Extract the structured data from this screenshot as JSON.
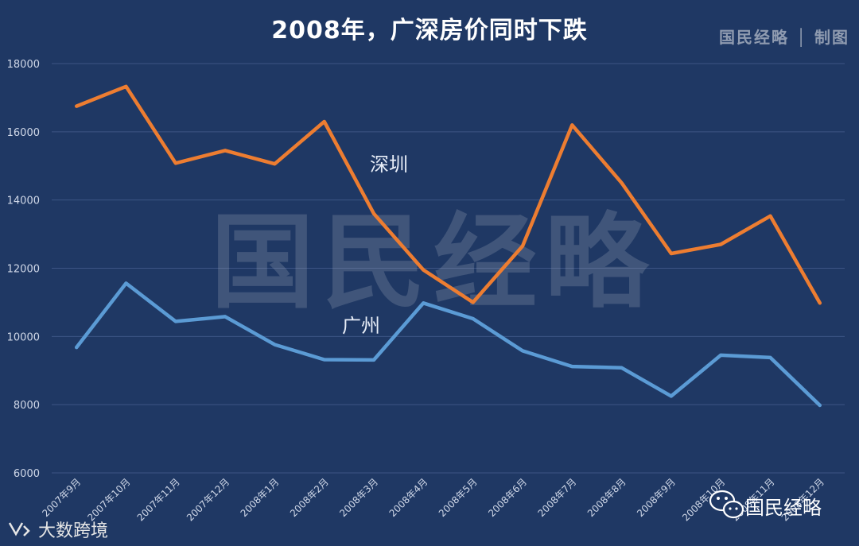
{
  "chart_data": {
    "type": "line",
    "title": "2008年，广深房价同时下跌",
    "categories": [
      "2007年9月",
      "2007年10月",
      "2007年11月",
      "2007年12月",
      "2008年1月",
      "2008年2月",
      "2008年3月",
      "2008年4月",
      "2008年5月",
      "2008年6月",
      "2008年7月",
      "2008年8月",
      "2008年9月",
      "2008年10月",
      "2008年11月",
      "2008年12月"
    ],
    "series": [
      {
        "name": "深圳",
        "color": "#ed7d31",
        "values": [
          16750,
          17330,
          15080,
          15450,
          15060,
          16300,
          13600,
          11950,
          11000,
          12650,
          16200,
          14500,
          12430,
          12700,
          13530,
          10980
        ]
      },
      {
        "name": "广州",
        "color": "#5b9bd5",
        "values": [
          9680,
          11560,
          10440,
          10580,
          9760,
          9320,
          9310,
          10980,
          10520,
          9580,
          9120,
          9080,
          8250,
          9450,
          9380,
          7980
        ]
      }
    ],
    "yticks": [
      "6000",
      "8000",
      "10000",
      "12000",
      "14000",
      "16000",
      "18000"
    ],
    "ylim": [
      6000,
      18000
    ],
    "grid": true,
    "legend": "inline-labels"
  },
  "credit": "国民经略 │ 制图",
  "watermark": "国民经略",
  "logo_wechat": "国民经略",
  "logo_left": "大数跨境"
}
